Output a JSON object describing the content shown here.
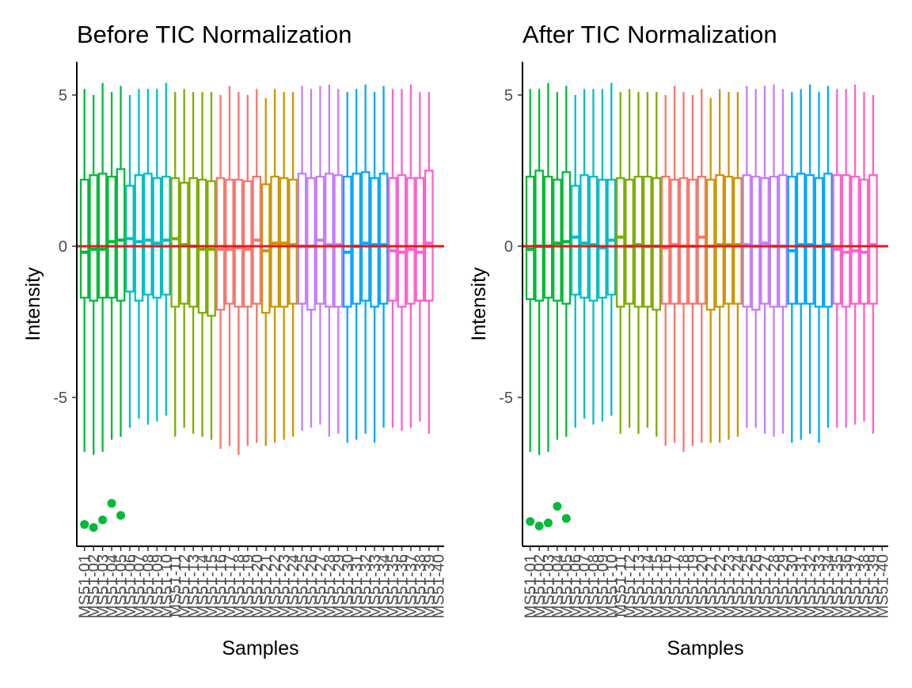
{
  "chart_data": [
    {
      "type": "box",
      "title": "Before TIC Normalization",
      "xlabel": "Samples",
      "ylabel": "Intensity",
      "ylim": [
        -10,
        6
      ],
      "yticks": [
        -5,
        0,
        5
      ],
      "reference_line": {
        "y": 0,
        "color": "#e41a1c"
      },
      "legend": "none",
      "grid": false,
      "categories": [
        "MS51-01",
        "MS51-02",
        "MS51-03",
        "MS51-04",
        "MS51-05",
        "MS51-06",
        "MS51-07",
        "MS51-08",
        "MS51-09",
        "MS51-10",
        "MS51-11",
        "MS51-12",
        "MS51-13",
        "MS51-14",
        "MS51-15",
        "MS51-16",
        "MS51-17",
        "MS51-18",
        "MS51-19",
        "MS51-20",
        "MS51-21",
        "MS51-22",
        "MS51-23",
        "MS51-24",
        "MS51-25",
        "MS51-26",
        "MS51-27",
        "MS51-28",
        "MS51-29",
        "MS51-30",
        "MS51-31",
        "MS51-32",
        "MS51-33",
        "MS51-34",
        "MS51-35",
        "MS51-36",
        "MS51-37",
        "MS51-38",
        "MS51-39",
        "MS51-40"
      ],
      "group_colors": [
        "#00ba38",
        "#00bfc4",
        "#7cae00",
        "#f8766d",
        "#cd9600",
        "#c77cff",
        "#00a9ff",
        "#ff61cc"
      ],
      "boxes": [
        {
          "whisker_low": -6.8,
          "q1": -1.7,
          "median": -0.2,
          "q3": 2.2,
          "whisker_high": 5.2,
          "group": 0
        },
        {
          "whisker_low": -6.9,
          "q1": -1.8,
          "median": -0.1,
          "q3": 2.35,
          "whisker_high": 5.0,
          "group": 0
        },
        {
          "whisker_low": -6.8,
          "q1": -1.7,
          "median": -0.1,
          "q3": 2.4,
          "whisker_high": 5.4,
          "group": 0
        },
        {
          "whisker_low": -6.4,
          "q1": -1.7,
          "median": 0.15,
          "q3": 2.3,
          "whisker_high": 5.1,
          "group": 0
        },
        {
          "whisker_low": -6.3,
          "q1": -1.8,
          "median": 0.2,
          "q3": 2.55,
          "whisker_high": 5.3,
          "group": 0
        },
        {
          "whisker_low": -6.0,
          "q1": -1.5,
          "median": 0.25,
          "q3": 2.0,
          "whisker_high": 5.0,
          "group": 1
        },
        {
          "whisker_low": -5.7,
          "q1": -1.8,
          "median": 0.15,
          "q3": 2.35,
          "whisker_high": 5.2,
          "group": 1
        },
        {
          "whisker_low": -5.9,
          "q1": -1.6,
          "median": 0.2,
          "q3": 2.4,
          "whisker_high": 5.2,
          "group": 1
        },
        {
          "whisker_low": -5.8,
          "q1": -1.7,
          "median": 0.1,
          "q3": 2.25,
          "whisker_high": 5.2,
          "group": 1
        },
        {
          "whisker_low": -5.6,
          "q1": -1.6,
          "median": 0.2,
          "q3": 2.3,
          "whisker_high": 5.4,
          "group": 1
        },
        {
          "whisker_low": -6.3,
          "q1": -2.0,
          "median": 0.25,
          "q3": 2.25,
          "whisker_high": 5.1,
          "group": 2
        },
        {
          "whisker_low": -6.0,
          "q1": -1.9,
          "median": 0.05,
          "q3": 2.1,
          "whisker_high": 5.2,
          "group": 2
        },
        {
          "whisker_low": -6.2,
          "q1": -2.0,
          "median": 0.0,
          "q3": 2.25,
          "whisker_high": 5.1,
          "group": 2
        },
        {
          "whisker_low": -6.3,
          "q1": -2.2,
          "median": -0.1,
          "q3": 2.2,
          "whisker_high": 5.1,
          "group": 2
        },
        {
          "whisker_low": -6.4,
          "q1": -2.3,
          "median": -0.1,
          "q3": 2.15,
          "whisker_high": 5.1,
          "group": 2
        },
        {
          "whisker_low": -6.7,
          "q1": -2.1,
          "median": -0.1,
          "q3": 2.25,
          "whisker_high": 5.0,
          "group": 3
        },
        {
          "whisker_low": -6.6,
          "q1": -1.9,
          "median": -0.1,
          "q3": 2.2,
          "whisker_high": 5.3,
          "group": 3
        },
        {
          "whisker_low": -6.9,
          "q1": -2.0,
          "median": -0.05,
          "q3": 2.2,
          "whisker_high": 5.1,
          "group": 3
        },
        {
          "whisker_low": -6.6,
          "q1": -2.0,
          "median": -0.1,
          "q3": 2.15,
          "whisker_high": 5.0,
          "group": 3
        },
        {
          "whisker_low": -6.5,
          "q1": -1.9,
          "median": 0.2,
          "q3": 2.3,
          "whisker_high": 5.2,
          "group": 3
        },
        {
          "whisker_low": -6.6,
          "q1": -2.2,
          "median": -0.15,
          "q3": 2.05,
          "whisker_high": 4.9,
          "group": 4
        },
        {
          "whisker_low": -6.5,
          "q1": -2.0,
          "median": 0.1,
          "q3": 2.3,
          "whisker_high": 5.2,
          "group": 4
        },
        {
          "whisker_low": -6.4,
          "q1": -2.0,
          "median": 0.1,
          "q3": 2.25,
          "whisker_high": 5.1,
          "group": 4
        },
        {
          "whisker_low": -6.3,
          "q1": -1.9,
          "median": 0.05,
          "q3": 2.2,
          "whisker_high": 5.1,
          "group": 4
        },
        {
          "whisker_low": -6.1,
          "q1": -1.9,
          "median": 0.0,
          "q3": 2.4,
          "whisker_high": 5.3,
          "group": 5
        },
        {
          "whisker_low": -6.0,
          "q1": -2.1,
          "median": 0.0,
          "q3": 2.25,
          "whisker_high": 5.2,
          "group": 5
        },
        {
          "whisker_low": -5.9,
          "q1": -1.9,
          "median": 0.2,
          "q3": 2.3,
          "whisker_high": 5.3,
          "group": 5
        },
        {
          "whisker_low": -6.3,
          "q1": -2.0,
          "median": 0.05,
          "q3": 2.4,
          "whisker_high": 5.35,
          "group": 5
        },
        {
          "whisker_low": -6.2,
          "q1": -2.0,
          "median": 0.05,
          "q3": 2.35,
          "whisker_high": 5.2,
          "group": 5
        },
        {
          "whisker_low": -6.5,
          "q1": -2.0,
          "median": -0.2,
          "q3": 2.3,
          "whisker_high": 5.1,
          "group": 6
        },
        {
          "whisker_low": -6.4,
          "q1": -1.9,
          "median": 0.0,
          "q3": 2.4,
          "whisker_high": 5.2,
          "group": 6
        },
        {
          "whisker_low": -6.2,
          "q1": -1.8,
          "median": 0.1,
          "q3": 2.45,
          "whisker_high": 5.35,
          "group": 6
        },
        {
          "whisker_low": -6.5,
          "q1": -2.0,
          "median": 0.05,
          "q3": 2.25,
          "whisker_high": 5.1,
          "group": 6
        },
        {
          "whisker_low": -6.0,
          "q1": -1.9,
          "median": 0.05,
          "q3": 2.4,
          "whisker_high": 5.3,
          "group": 6
        },
        {
          "whisker_low": -6.0,
          "q1": -1.8,
          "median": -0.15,
          "q3": 2.25,
          "whisker_high": 5.2,
          "group": 7
        },
        {
          "whisker_low": -6.1,
          "q1": -2.0,
          "median": -0.2,
          "q3": 2.35,
          "whisker_high": 5.2,
          "group": 7
        },
        {
          "whisker_low": -6.0,
          "q1": -1.9,
          "median": -0.1,
          "q3": 2.25,
          "whisker_high": 5.35,
          "group": 7
        },
        {
          "whisker_low": -5.8,
          "q1": -1.8,
          "median": -0.2,
          "q3": 2.25,
          "whisker_high": 5.1,
          "group": 7
        },
        {
          "whisker_low": -6.2,
          "q1": -1.8,
          "median": 0.1,
          "q3": 2.5,
          "whisker_high": 5.1,
          "group": 7
        }
      ],
      "outliers": [
        {
          "category": "MS51-01",
          "y": -9.2
        },
        {
          "category": "MS51-02",
          "y": -9.3
        },
        {
          "category": "MS51-03",
          "y": -9.05
        },
        {
          "category": "MS51-04",
          "y": -8.5
        },
        {
          "category": "MS51-05",
          "y": -8.9
        }
      ]
    },
    {
      "type": "box",
      "title": "After TIC Normalization",
      "xlabel": "Samples",
      "ylabel": "Intensity",
      "ylim": [
        -10,
        6
      ],
      "yticks": [
        -5,
        0,
        5
      ],
      "reference_line": {
        "y": 0,
        "color": "#e41a1c"
      },
      "legend": "none",
      "grid": false,
      "categories": [
        "MS51-01",
        "MS51-02",
        "MS51-03",
        "MS51-04",
        "MS51-05",
        "MS51-06",
        "MS51-07",
        "MS51-08",
        "MS51-09",
        "MS51-10",
        "MS51-11",
        "MS51-12",
        "MS51-13",
        "MS51-14",
        "MS51-15",
        "MS51-16",
        "MS51-17",
        "MS51-18",
        "MS51-19",
        "MS51-20",
        "MS51-21",
        "MS51-22",
        "MS51-23",
        "MS51-24",
        "MS51-25",
        "MS51-26",
        "MS51-27",
        "MS51-28",
        "MS51-29",
        "MS51-30",
        "MS51-31",
        "MS51-32",
        "MS51-33",
        "MS51-34",
        "MS51-35",
        "MS51-36",
        "MS51-37",
        "MS51-38",
        "MS51-39",
        "MS51-40"
      ],
      "group_colors": [
        "#00ba38",
        "#00bfc4",
        "#7cae00",
        "#f8766d",
        "#cd9600",
        "#c77cff",
        "#00a9ff",
        "#ff61cc"
      ],
      "boxes": [
        {
          "whisker_low": -6.8,
          "q1": -1.75,
          "median": -0.1,
          "q3": 2.3,
          "whisker_high": 5.2,
          "group": 0
        },
        {
          "whisker_low": -6.9,
          "q1": -1.8,
          "median": 0.0,
          "q3": 2.5,
          "whisker_high": 5.2,
          "group": 0
        },
        {
          "whisker_low": -6.8,
          "q1": -1.7,
          "median": 0.0,
          "q3": 2.3,
          "whisker_high": 5.4,
          "group": 0
        },
        {
          "whisker_low": -6.4,
          "q1": -1.8,
          "median": 0.1,
          "q3": 2.2,
          "whisker_high": 5.1,
          "group": 0
        },
        {
          "whisker_low": -6.3,
          "q1": -1.9,
          "median": 0.15,
          "q3": 2.45,
          "whisker_high": 5.3,
          "group": 0
        },
        {
          "whisker_low": -6.0,
          "q1": -1.6,
          "median": 0.3,
          "q3": 2.0,
          "whisker_high": 5.0,
          "group": 1
        },
        {
          "whisker_low": -5.7,
          "q1": -1.7,
          "median": 0.1,
          "q3": 2.35,
          "whisker_high": 5.2,
          "group": 1
        },
        {
          "whisker_low": -5.9,
          "q1": -1.8,
          "median": 0.05,
          "q3": 2.3,
          "whisker_high": 5.2,
          "group": 1
        },
        {
          "whisker_low": -5.8,
          "q1": -1.7,
          "median": -0.05,
          "q3": 2.2,
          "whisker_high": 5.2,
          "group": 1
        },
        {
          "whisker_low": -5.6,
          "q1": -1.6,
          "median": 0.2,
          "q3": 2.2,
          "whisker_high": 5.4,
          "group": 1
        },
        {
          "whisker_low": -6.2,
          "q1": -2.0,
          "median": 0.3,
          "q3": 2.25,
          "whisker_high": 5.1,
          "group": 2
        },
        {
          "whisker_low": -6.0,
          "q1": -1.9,
          "median": 0.0,
          "q3": 2.2,
          "whisker_high": 5.2,
          "group": 2
        },
        {
          "whisker_low": -6.2,
          "q1": -2.0,
          "median": 0.05,
          "q3": 2.3,
          "whisker_high": 5.1,
          "group": 2
        },
        {
          "whisker_low": -6.0,
          "q1": -2.0,
          "median": 0.0,
          "q3": 2.3,
          "whisker_high": 5.1,
          "group": 2
        },
        {
          "whisker_low": -6.3,
          "q1": -2.1,
          "median": 0.0,
          "q3": 2.25,
          "whisker_high": 5.1,
          "group": 2
        },
        {
          "whisker_low": -6.6,
          "q1": -1.9,
          "median": -0.05,
          "q3": 2.3,
          "whisker_high": 5.0,
          "group": 3
        },
        {
          "whisker_low": -6.5,
          "q1": -1.9,
          "median": 0.05,
          "q3": 2.2,
          "whisker_high": 5.3,
          "group": 3
        },
        {
          "whisker_low": -6.8,
          "q1": -1.9,
          "median": 0.0,
          "q3": 2.25,
          "whisker_high": 5.1,
          "group": 3
        },
        {
          "whisker_low": -6.6,
          "q1": -1.9,
          "median": 0.0,
          "q3": 2.2,
          "whisker_high": 5.0,
          "group": 3
        },
        {
          "whisker_low": -6.5,
          "q1": -1.9,
          "median": 0.3,
          "q3": 2.3,
          "whisker_high": 5.2,
          "group": 3
        },
        {
          "whisker_low": -6.5,
          "q1": -2.1,
          "median": 0.0,
          "q3": 2.2,
          "whisker_high": 4.9,
          "group": 4
        },
        {
          "whisker_low": -6.5,
          "q1": -2.0,
          "median": 0.05,
          "q3": 2.35,
          "whisker_high": 5.2,
          "group": 4
        },
        {
          "whisker_low": -6.4,
          "q1": -1.9,
          "median": 0.05,
          "q3": 2.3,
          "whisker_high": 5.1,
          "group": 4
        },
        {
          "whisker_low": -6.3,
          "q1": -1.9,
          "median": 0.05,
          "q3": 2.25,
          "whisker_high": 5.1,
          "group": 4
        },
        {
          "whisker_low": -6.0,
          "q1": -2.0,
          "median": 0.05,
          "q3": 2.35,
          "whisker_high": 5.3,
          "group": 5
        },
        {
          "whisker_low": -6.0,
          "q1": -2.1,
          "median": 0.0,
          "q3": 2.3,
          "whisker_high": 5.2,
          "group": 5
        },
        {
          "whisker_low": -6.2,
          "q1": -1.9,
          "median": 0.1,
          "q3": 2.25,
          "whisker_high": 5.3,
          "group": 5
        },
        {
          "whisker_low": -6.3,
          "q1": -2.0,
          "median": 0.0,
          "q3": 2.3,
          "whisker_high": 5.35,
          "group": 5
        },
        {
          "whisker_low": -6.2,
          "q1": -2.0,
          "median": 0.0,
          "q3": 2.35,
          "whisker_high": 5.2,
          "group": 5
        },
        {
          "whisker_low": -6.5,
          "q1": -1.9,
          "median": -0.15,
          "q3": 2.3,
          "whisker_high": 5.1,
          "group": 6
        },
        {
          "whisker_low": -6.4,
          "q1": -1.9,
          "median": 0.05,
          "q3": 2.4,
          "whisker_high": 5.2,
          "group": 6
        },
        {
          "whisker_low": -6.2,
          "q1": -1.9,
          "median": 0.05,
          "q3": 2.35,
          "whisker_high": 5.35,
          "group": 6
        },
        {
          "whisker_low": -6.5,
          "q1": -2.0,
          "median": 0.0,
          "q3": 2.25,
          "whisker_high": 5.1,
          "group": 6
        },
        {
          "whisker_low": -6.0,
          "q1": -2.0,
          "median": 0.05,
          "q3": 2.4,
          "whisker_high": 5.3,
          "group": 6
        },
        {
          "whisker_low": -6.0,
          "q1": -1.9,
          "median": -0.1,
          "q3": 2.35,
          "whisker_high": 5.2,
          "group": 7
        },
        {
          "whisker_low": -6.0,
          "q1": -2.0,
          "median": -0.2,
          "q3": 2.35,
          "whisker_high": 5.2,
          "group": 7
        },
        {
          "whisker_low": -5.9,
          "q1": -1.9,
          "median": -0.15,
          "q3": 2.3,
          "whisker_high": 5.35,
          "group": 7
        },
        {
          "whisker_low": -5.8,
          "q1": -1.9,
          "median": -0.2,
          "q3": 2.2,
          "whisker_high": 5.1,
          "group": 7
        },
        {
          "whisker_low": -6.2,
          "q1": -1.9,
          "median": 0.05,
          "q3": 2.35,
          "whisker_high": 5.0,
          "group": 7
        }
      ],
      "outliers": [
        {
          "category": "MS51-01",
          "y": -9.1
        },
        {
          "category": "MS51-02",
          "y": -9.25
        },
        {
          "category": "MS51-03",
          "y": -9.15
        },
        {
          "category": "MS51-04",
          "y": -8.6
        },
        {
          "category": "MS51-05",
          "y": -9.0
        }
      ]
    }
  ]
}
